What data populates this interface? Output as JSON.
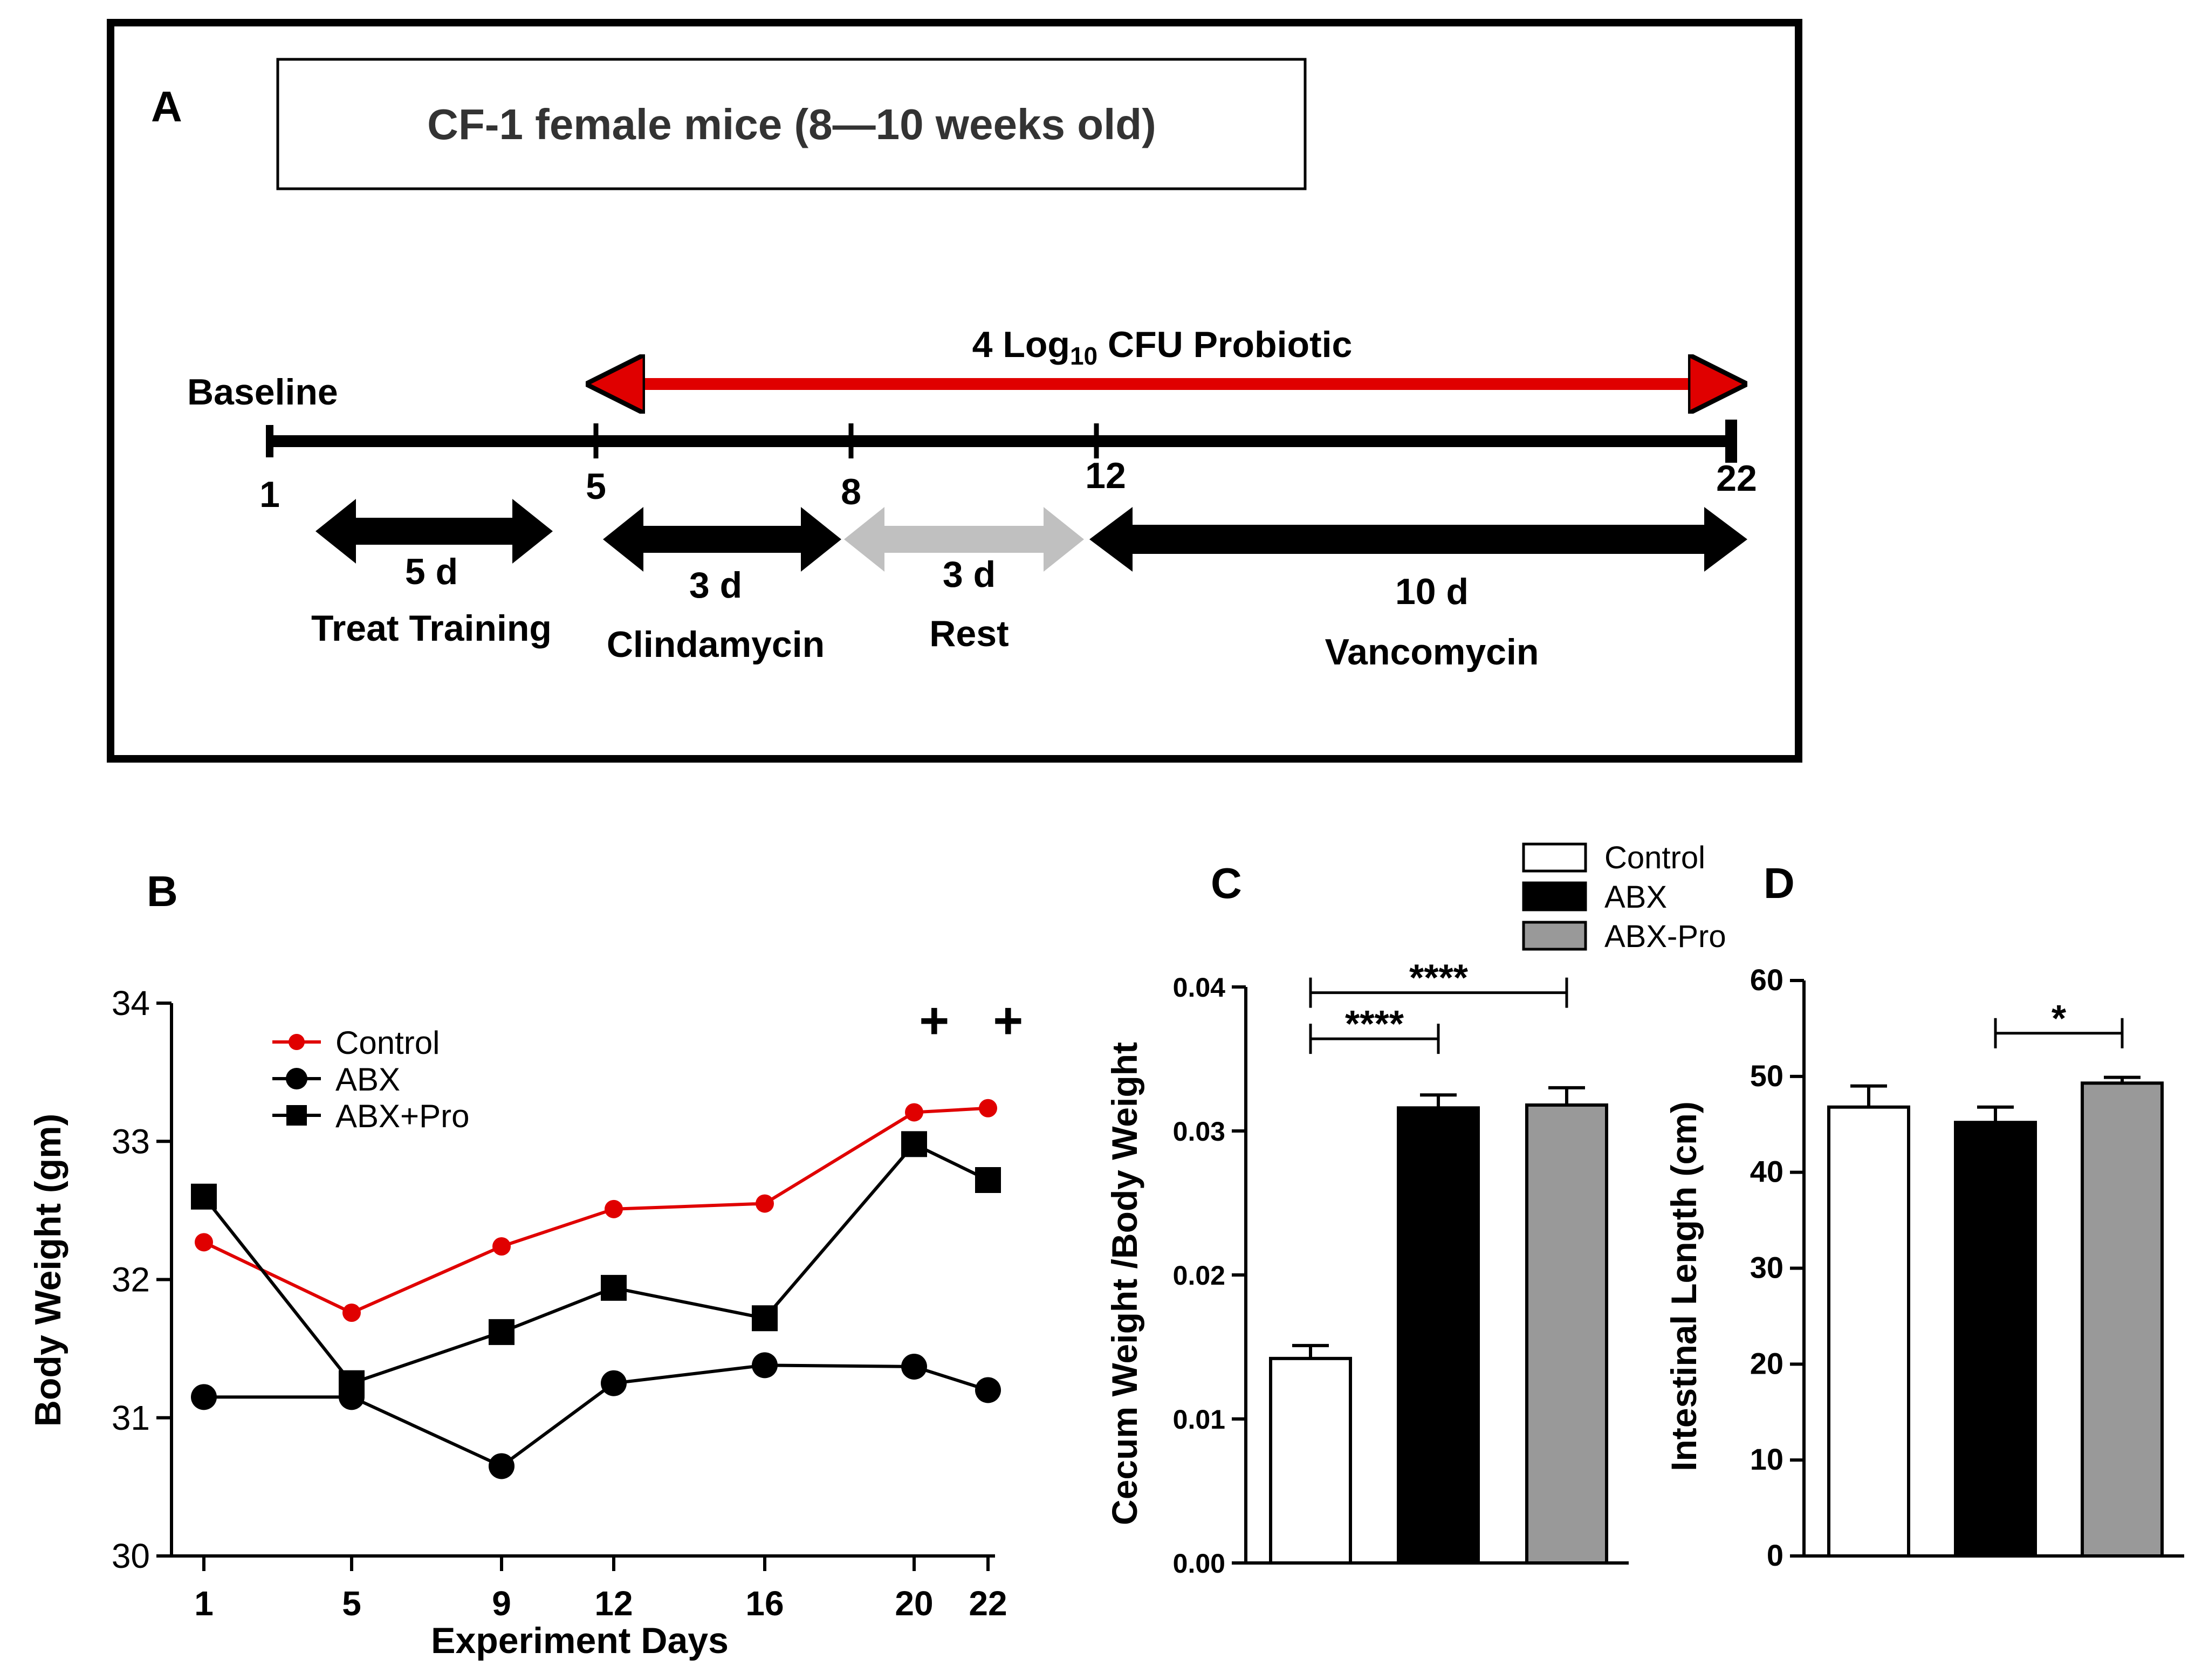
{
  "panel_a": {
    "label": "A",
    "title": "CF-1 female mice (8—10 weeks old)",
    "baseline_label": "Baseline",
    "probiotic": {
      "prefix": "4 Log",
      "subscript": "10",
      "suffix": " CFU Probiotic",
      "color": "#e00000"
    },
    "day_labels": [
      "1",
      "5",
      "8",
      "12",
      "22"
    ],
    "phases": [
      {
        "duration": "5 d",
        "name": "Treat Training",
        "color": "#000000"
      },
      {
        "duration": "3 d",
        "name": "Clindamycin",
        "color": "#000000"
      },
      {
        "duration": "3 d",
        "name": "Rest",
        "color": "#c0c0c0"
      },
      {
        "duration": "10 d",
        "name": "Vancomycin",
        "color": "#000000"
      }
    ]
  },
  "panel_labels": {
    "b": "B",
    "c": "C",
    "d": "D"
  },
  "shared_legend": [
    {
      "name": "Control",
      "color": "#ffffff"
    },
    {
      "name": "ABX",
      "color": "#000000"
    },
    {
      "name": "ABX-Pro",
      "color": "#999999"
    }
  ],
  "chart_data": [
    {
      "panel": "B",
      "type": "line",
      "xlabel": "Experiment Days",
      "ylabel": "Body Weight (gm)",
      "x": [
        1,
        5,
        9,
        12,
        16,
        20,
        22
      ],
      "xticks": [
        "1",
        "5",
        "9",
        "12",
        "16",
        "20",
        "22"
      ],
      "ylim": [
        30,
        34
      ],
      "yticks": [
        "30",
        "31",
        "32",
        "33",
        "34"
      ],
      "series": [
        {
          "name": "Control",
          "color": "#e00000",
          "marker": "circle",
          "values": [
            32.27,
            31.76,
            32.24,
            32.51,
            32.55,
            33.21,
            33.24
          ]
        },
        {
          "name": "ABX",
          "color": "#000000",
          "marker": "circle",
          "values": [
            31.15,
            31.15,
            30.65,
            31.25,
            31.38,
            31.37,
            31.2
          ]
        },
        {
          "name": "ABX+Pro",
          "color": "#000000",
          "marker": "square",
          "values": [
            32.6,
            31.25,
            31.62,
            31.94,
            31.72,
            32.98,
            32.72
          ]
        }
      ],
      "annotations": [
        {
          "x": 20.5,
          "text": "+"
        },
        {
          "x": 22.5,
          "text": "+"
        }
      ]
    },
    {
      "panel": "C",
      "type": "bar",
      "ylabel": "Cecum Weight /Body Weight",
      "categories": [
        "Control",
        "ABX",
        "ABX-Pro"
      ],
      "values": [
        0.0142,
        0.0316,
        0.0318
      ],
      "errors": [
        0.0009,
        0.0009,
        0.0012
      ],
      "colors": [
        "#ffffff",
        "#000000",
        "#999999"
      ],
      "ylim": [
        0,
        0.04
      ],
      "yticks": [
        "0.00",
        "0.01",
        "0.02",
        "0.03",
        "0.04"
      ],
      "significance": [
        {
          "from": 0,
          "to": 1,
          "text": "****",
          "level": 0.0364
        },
        {
          "from": 0,
          "to": 2,
          "text": "****",
          "level": 0.0396
        }
      ]
    },
    {
      "panel": "D",
      "type": "bar",
      "ylabel": "Intestinal Length (cm)",
      "categories": [
        "Control",
        "ABX",
        "ABX-Pro"
      ],
      "values": [
        46.8,
        45.2,
        49.3
      ],
      "errors": [
        2.2,
        1.6,
        0.6
      ],
      "colors": [
        "#ffffff",
        "#000000",
        "#999999"
      ],
      "ylim": [
        0,
        60
      ],
      "yticks": [
        "0",
        "10",
        "20",
        "30",
        "40",
        "50",
        "60"
      ],
      "significance": [
        {
          "from": 1,
          "to": 2,
          "text": "*",
          "level": 54.5
        }
      ]
    }
  ]
}
